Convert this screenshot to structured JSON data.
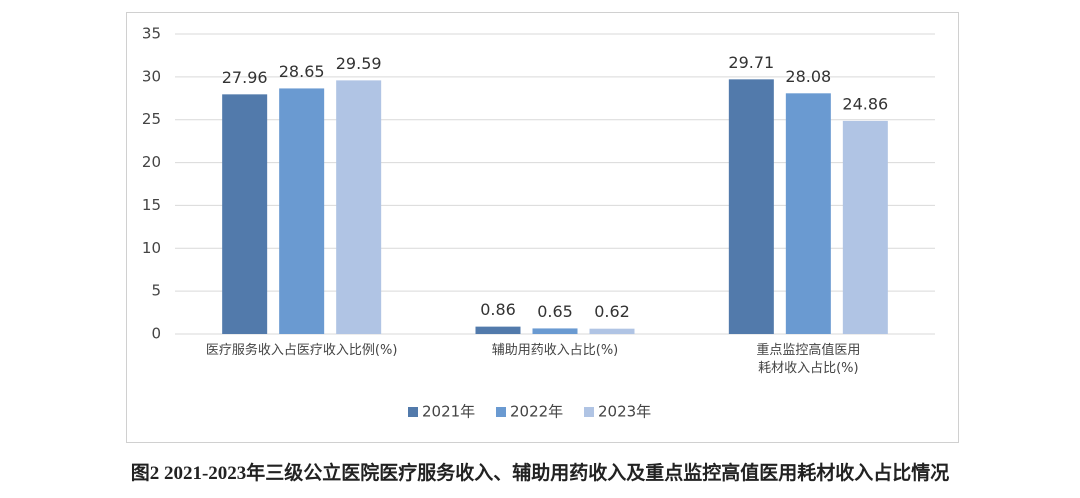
{
  "chart_data": {
    "type": "bar",
    "caption": "图2 2021-2023年三级公立医院医疗服务收入、辅助用药收入及重点监控高值医用耗材收入占比情况",
    "categories": [
      "医疗服务收入占医疗收入比例(%)",
      "辅助用药收入占比(%)",
      "重点监控高值医用耗材收入占比(%)"
    ],
    "series": [
      {
        "name": "2021年",
        "color": "#527aab",
        "values": [
          27.96,
          0.86,
          29.71
        ]
      },
      {
        "name": "2022年",
        "color": "#6a9ad1",
        "values": [
          28.65,
          0.65,
          28.08
        ]
      },
      {
        "name": "2023年",
        "color": "#b0c4e4",
        "values": [
          29.59,
          0.62,
          24.86
        ]
      }
    ],
    "ylim": [
      0,
      35
    ],
    "yticks": [
      0,
      5,
      10,
      15,
      20,
      25,
      30,
      35
    ],
    "grid": true,
    "legend": "bottom"
  }
}
